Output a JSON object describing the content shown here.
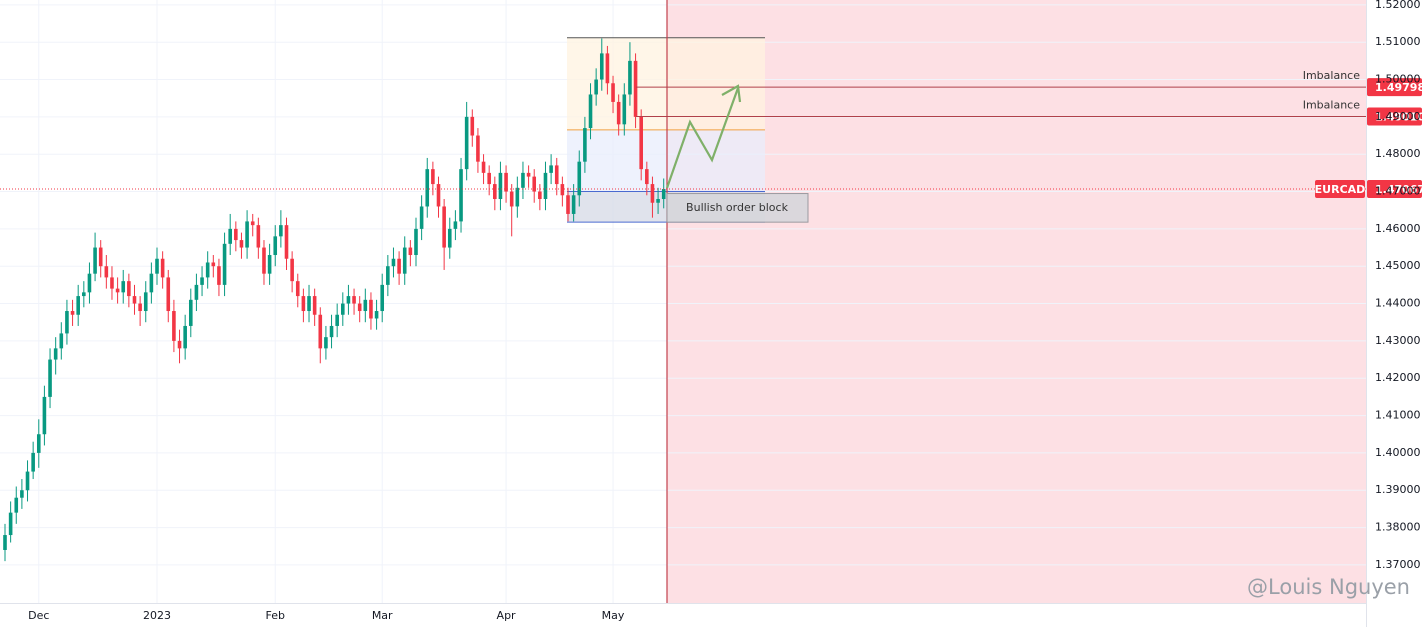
{
  "chart_data": {
    "type": "candlestick",
    "up_color": "#089981",
    "down_color": "#f23645",
    "ylim": [
      1.3598,
      1.5213
    ],
    "yticks": [
      {
        "value": 1.37,
        "label": "1.37000"
      },
      {
        "value": 1.38,
        "label": "1.38000"
      },
      {
        "value": 1.39,
        "label": "1.39000"
      },
      {
        "value": 1.4,
        "label": "1.40000"
      },
      {
        "value": 1.41,
        "label": "1.41000"
      },
      {
        "value": 1.42,
        "label": "1.42000"
      },
      {
        "value": 1.43,
        "label": "1.43000"
      },
      {
        "value": 1.44,
        "label": "1.44000"
      },
      {
        "value": 1.45,
        "label": "1.45000"
      },
      {
        "value": 1.46,
        "label": "1.46000"
      },
      {
        "value": 1.47,
        "label": "1.47000"
      },
      {
        "value": 1.48,
        "label": "1.48000"
      },
      {
        "value": 1.49,
        "label": "1.49000"
      },
      {
        "value": 1.5,
        "label": "1.50000"
      },
      {
        "value": 1.51,
        "label": "1.51000"
      },
      {
        "value": 1.52,
        "label": "1.52000"
      }
    ],
    "grid": true,
    "categories": [
      null,
      null,
      null,
      null,
      null,
      null,
      "Dec",
      null,
      null,
      null,
      null,
      null,
      null,
      null,
      null,
      null,
      null,
      null,
      null,
      null,
      null,
      null,
      null,
      null,
      null,
      null,
      null,
      "2023",
      null,
      null,
      null,
      null,
      null,
      null,
      null,
      null,
      null,
      null,
      null,
      null,
      null,
      null,
      null,
      null,
      null,
      null,
      null,
      null,
      "Feb",
      null,
      null,
      null,
      null,
      null,
      null,
      null,
      null,
      null,
      null,
      null,
      null,
      null,
      null,
      null,
      null,
      null,
      null,
      "Mar",
      null,
      null,
      null,
      null,
      null,
      null,
      null,
      null,
      null,
      null,
      null,
      null,
      null,
      null,
      null,
      null,
      null,
      null,
      null,
      null,
      null,
      "Apr",
      null,
      null,
      null,
      null,
      null,
      null,
      null,
      null,
      null,
      null,
      null,
      null,
      null,
      null,
      null,
      null,
      null,
      null,
      "May",
      null,
      null,
      null,
      null,
      null,
      null,
      null,
      null,
      null
    ],
    "ohlc": [
      [
        1.374,
        1.381,
        1.371,
        1.378
      ],
      [
        1.378,
        1.387,
        1.376,
        1.384
      ],
      [
        1.384,
        1.391,
        1.381,
        1.388
      ],
      [
        1.388,
        1.393,
        1.385,
        1.39
      ],
      [
        1.39,
        1.398,
        1.387,
        1.395
      ],
      [
        1.395,
        1.403,
        1.393,
        1.4
      ],
      [
        1.4,
        1.409,
        1.396,
        1.405
      ],
      [
        1.405,
        1.418,
        1.402,
        1.415
      ],
      [
        1.415,
        1.428,
        1.412,
        1.425
      ],
      [
        1.425,
        1.431,
        1.421,
        1.428
      ],
      [
        1.428,
        1.435,
        1.425,
        1.432
      ],
      [
        1.432,
        1.441,
        1.429,
        1.438
      ],
      [
        1.438,
        1.441,
        1.434,
        1.437
      ],
      [
        1.437,
        1.445,
        1.434,
        1.442
      ],
      [
        1.442,
        1.446,
        1.439,
        1.443
      ],
      [
        1.443,
        1.451,
        1.44,
        1.448
      ],
      [
        1.448,
        1.459,
        1.446,
        1.455
      ],
      [
        1.455,
        1.457,
        1.447,
        1.45
      ],
      [
        1.45,
        1.453,
        1.444,
        1.447
      ],
      [
        1.447,
        1.45,
        1.441,
        1.444
      ],
      [
        1.444,
        1.447,
        1.44,
        1.443
      ],
      [
        1.443,
        1.449,
        1.44,
        1.446
      ],
      [
        1.446,
        1.448,
        1.439,
        1.442
      ],
      [
        1.442,
        1.445,
        1.437,
        1.44
      ],
      [
        1.44,
        1.442,
        1.434,
        1.438
      ],
      [
        1.438,
        1.446,
        1.435,
        1.443
      ],
      [
        1.443,
        1.451,
        1.44,
        1.448
      ],
      [
        1.448,
        1.455,
        1.445,
        1.452
      ],
      [
        1.452,
        1.454,
        1.444,
        1.447
      ],
      [
        1.447,
        1.449,
        1.435,
        1.438
      ],
      [
        1.438,
        1.441,
        1.427,
        1.43
      ],
      [
        1.43,
        1.433,
        1.424,
        1.428
      ],
      [
        1.428,
        1.437,
        1.425,
        1.434
      ],
      [
        1.434,
        1.444,
        1.431,
        1.441
      ],
      [
        1.441,
        1.448,
        1.438,
        1.445
      ],
      [
        1.445,
        1.45,
        1.442,
        1.447
      ],
      [
        1.447,
        1.454,
        1.444,
        1.451
      ],
      [
        1.451,
        1.453,
        1.447,
        1.45
      ],
      [
        1.45,
        1.452,
        1.442,
        1.445
      ],
      [
        1.445,
        1.459,
        1.442,
        1.456
      ],
      [
        1.456,
        1.464,
        1.453,
        1.46
      ],
      [
        1.46,
        1.462,
        1.454,
        1.457
      ],
      [
        1.457,
        1.459,
        1.452,
        1.455
      ],
      [
        1.455,
        1.465,
        1.452,
        1.462
      ],
      [
        1.462,
        1.464,
        1.458,
        1.461
      ],
      [
        1.461,
        1.463,
        1.452,
        1.455
      ],
      [
        1.455,
        1.457,
        1.445,
        1.448
      ],
      [
        1.448,
        1.456,
        1.445,
        1.453
      ],
      [
        1.453,
        1.461,
        1.45,
        1.458
      ],
      [
        1.458,
        1.465,
        1.455,
        1.461
      ],
      [
        1.461,
        1.463,
        1.449,
        1.452
      ],
      [
        1.452,
        1.454,
        1.443,
        1.446
      ],
      [
        1.446,
        1.448,
        1.439,
        1.442
      ],
      [
        1.442,
        1.444,
        1.435,
        1.438
      ],
      [
        1.438,
        1.445,
        1.435,
        1.442
      ],
      [
        1.442,
        1.444,
        1.434,
        1.437
      ],
      [
        1.437,
        1.439,
        1.424,
        1.428
      ],
      [
        1.428,
        1.434,
        1.425,
        1.431
      ],
      [
        1.431,
        1.437,
        1.428,
        1.434
      ],
      [
        1.434,
        1.44,
        1.431,
        1.437
      ],
      [
        1.437,
        1.443,
        1.434,
        1.44
      ],
      [
        1.44,
        1.445,
        1.437,
        1.442
      ],
      [
        1.442,
        1.444,
        1.437,
        1.44
      ],
      [
        1.44,
        1.442,
        1.435,
        1.438
      ],
      [
        1.438,
        1.444,
        1.435,
        1.441
      ],
      [
        1.441,
        1.443,
        1.433,
        1.436
      ],
      [
        1.436,
        1.441,
        1.433,
        1.438
      ],
      [
        1.438,
        1.448,
        1.435,
        1.445
      ],
      [
        1.445,
        1.453,
        1.442,
        1.45
      ],
      [
        1.45,
        1.455,
        1.447,
        1.452
      ],
      [
        1.452,
        1.454,
        1.445,
        1.448
      ],
      [
        1.448,
        1.458,
        1.445,
        1.455
      ],
      [
        1.455,
        1.457,
        1.45,
        1.453
      ],
      [
        1.453,
        1.463,
        1.45,
        1.46
      ],
      [
        1.46,
        1.469,
        1.457,
        1.466
      ],
      [
        1.466,
        1.479,
        1.463,
        1.476
      ],
      [
        1.476,
        1.478,
        1.469,
        1.472
      ],
      [
        1.472,
        1.474,
        1.463,
        1.466
      ],
      [
        1.466,
        1.468,
        1.449,
        1.455
      ],
      [
        1.455,
        1.463,
        1.452,
        1.46
      ],
      [
        1.46,
        1.465,
        1.457,
        1.462
      ],
      [
        1.462,
        1.479,
        1.459,
        1.476
      ],
      [
        1.476,
        1.494,
        1.473,
        1.49
      ],
      [
        1.49,
        1.492,
        1.482,
        1.485
      ],
      [
        1.485,
        1.487,
        1.475,
        1.478
      ],
      [
        1.478,
        1.48,
        1.472,
        1.475
      ],
      [
        1.475,
        1.477,
        1.469,
        1.472
      ],
      [
        1.472,
        1.474,
        1.465,
        1.468
      ],
      [
        1.468,
        1.478,
        1.465,
        1.475
      ],
      [
        1.475,
        1.477,
        1.467,
        1.47
      ],
      [
        1.47,
        1.472,
        1.458,
        1.466
      ],
      [
        1.466,
        1.474,
        1.463,
        1.471
      ],
      [
        1.471,
        1.478,
        1.468,
        1.475
      ],
      [
        1.475,
        1.477,
        1.471,
        1.474
      ],
      [
        1.474,
        1.476,
        1.467,
        1.47
      ],
      [
        1.47,
        1.472,
        1.465,
        1.468
      ],
      [
        1.468,
        1.478,
        1.465,
        1.475
      ],
      [
        1.475,
        1.48,
        1.472,
        1.477
      ],
      [
        1.477,
        1.479,
        1.469,
        1.472
      ],
      [
        1.472,
        1.474,
        1.466,
        1.469
      ],
      [
        1.469,
        1.471,
        1.462,
        1.464
      ],
      [
        1.464,
        1.472,
        1.462,
        1.469
      ],
      [
        1.469,
        1.481,
        1.466,
        1.478
      ],
      [
        1.478,
        1.49,
        1.475,
        1.487
      ],
      [
        1.487,
        1.499,
        1.484,
        1.496
      ],
      [
        1.496,
        1.503,
        1.493,
        1.5
      ],
      [
        1.5,
        1.511,
        1.497,
        1.507
      ],
      [
        1.507,
        1.509,
        1.496,
        1.499
      ],
      [
        1.499,
        1.501,
        1.491,
        1.494
      ],
      [
        1.494,
        1.496,
        1.485,
        1.488
      ],
      [
        1.488,
        1.499,
        1.485,
        1.496
      ],
      [
        1.496,
        1.51,
        1.493,
        1.505
      ],
      [
        1.505,
        1.507,
        1.487,
        1.49
      ],
      [
        1.49,
        1.492,
        1.473,
        1.476
      ],
      [
        1.476,
        1.478,
        1.469,
        1.472
      ],
      [
        1.472,
        1.474,
        1.463,
        1.467
      ],
      [
        1.467,
        1.471,
        1.464,
        1.468
      ],
      [
        1.468,
        1.4735,
        1.4655,
        1.47067
      ]
    ],
    "zones": [
      {
        "from": 1.4865,
        "to": 1.5112,
        "color": "#fff3e0"
      },
      {
        "from": 1.47,
        "to": 1.4865,
        "color": "#e8eefc"
      },
      {
        "from": 1.4618,
        "to": 1.47,
        "color": "#d5d9e6",
        "label": "Bullish order block"
      }
    ],
    "levels": [
      {
        "label": "Imbalance",
        "price": 1.49798
      },
      {
        "label": "Imbalance",
        "price": {
          "value": 1.4901,
          "label": "1.49010"
        }
      }
    ],
    "current": {
      "symbol": "EURCAD",
      "price": 1.47067
    },
    "watermark": "@Louis Nguyen"
  }
}
